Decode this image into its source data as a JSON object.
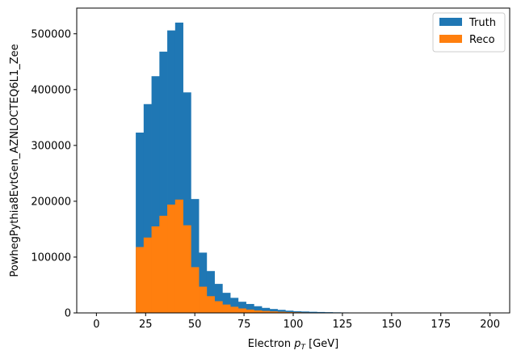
{
  "chart_data": {
    "type": "bar",
    "bin_width": 4,
    "x_range": [
      20,
      180
    ],
    "xlabel_prefix": "Electron ",
    "xlabel_var": "p",
    "xlabel_sub": "T",
    "xlabel_suffix": " [GeV]",
    "ylabel": "PowhegPythia8EvtGen_AZNLOCTEQ6L1_Zee",
    "xlim": [
      -10,
      210
    ],
    "ylim": [
      0,
      546000
    ],
    "xticks": [
      0,
      25,
      50,
      75,
      100,
      125,
      150,
      175,
      200
    ],
    "yticks": [
      0,
      100000,
      200000,
      300000,
      400000,
      500000
    ],
    "legend_position": "top-right",
    "series": [
      {
        "name": "Truth",
        "color": "#1f77b4",
        "values": [
          323000,
          374000,
          424000,
          468000,
          506000,
          520000,
          395000,
          204000,
          108000,
          75000,
          52000,
          36000,
          27000,
          20000,
          16000,
          12000,
          9000,
          7000,
          5500,
          4000,
          3000,
          2500,
          2000,
          1600,
          1300,
          1000,
          800,
          700,
          600,
          500,
          400,
          300,
          250,
          200,
          150,
          100,
          80,
          60,
          50,
          40
        ]
      },
      {
        "name": "Reco",
        "color": "#ff7f0e",
        "values": [
          118000,
          135000,
          155000,
          174000,
          194000,
          203000,
          157000,
          82000,
          47000,
          30000,
          21000,
          15000,
          11000,
          8000,
          6000,
          4500,
          3500,
          2700,
          2000,
          1500,
          1200,
          900,
          700,
          550,
          450,
          350,
          280,
          230,
          180,
          140,
          110,
          90,
          70,
          50,
          40,
          30,
          20,
          15,
          10,
          8
        ]
      }
    ]
  }
}
